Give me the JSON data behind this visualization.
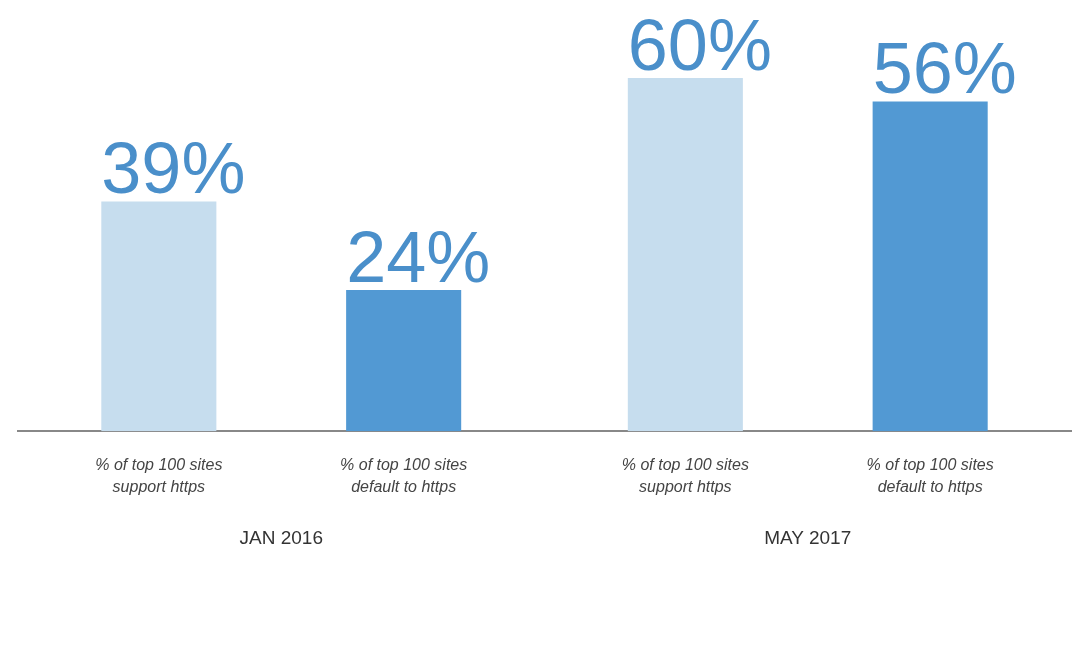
{
  "chart_data": {
    "type": "bar",
    "categories": [
      "JAN 2016",
      "MAY 2017"
    ],
    "series": [
      {
        "name": "% of top 100 sites support https",
        "color": "#c6ddee",
        "values": [
          39,
          60
        ],
        "value_labels": [
          "39%",
          "60%"
        ]
      },
      {
        "name": "% of top 100 sites default to https",
        "color": "#5299d3",
        "values": [
          24,
          56
        ],
        "value_labels": [
          "24%",
          "56%"
        ]
      }
    ],
    "legend": false,
    "grid": false
  }
}
